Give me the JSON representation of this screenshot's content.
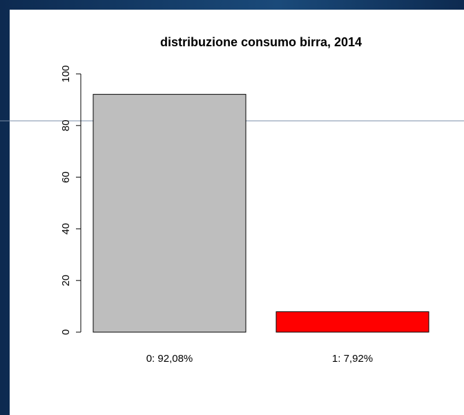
{
  "chart_data": {
    "type": "bar",
    "title": "distribuzione consumo birra, 2014",
    "categories": [
      "0: 92,08%",
      "1: 7,92%"
    ],
    "values": [
      92.08,
      7.92
    ],
    "colors": [
      "#bebebe",
      "#ff0000"
    ],
    "ylim": [
      0,
      100
    ],
    "yticks": [
      0,
      20,
      40,
      60,
      80,
      100
    ],
    "grid": false
  }
}
